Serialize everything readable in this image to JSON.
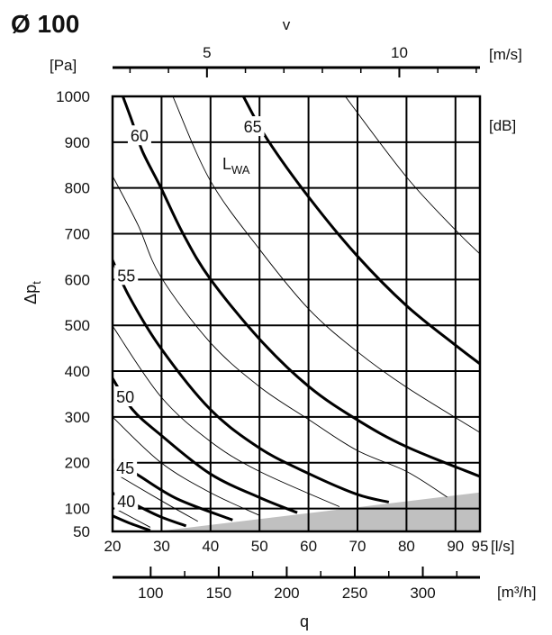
{
  "chart_data": {
    "type": "line",
    "title": "Ø 100",
    "x_axis": {
      "label": "q",
      "unit": "[l/s]",
      "range": [
        20,
        95
      ],
      "ticks": [
        20,
        30,
        40,
        50,
        60,
        70,
        80,
        90,
        95
      ]
    },
    "x2_axis": {
      "unit": "[m³/h]",
      "range": [
        72,
        342
      ],
      "ticks": [
        100,
        150,
        200,
        250,
        300
      ],
      "minor_ticks": [
        125,
        175,
        225,
        275,
        325
      ]
    },
    "top_axis": {
      "label": "v",
      "unit": "[m/s]",
      "range": [
        2.2,
        12.1
      ],
      "ticks": [
        5,
        10
      ],
      "minor_ticks": [
        3,
        4,
        6,
        7,
        8,
        9,
        11,
        12
      ]
    },
    "y_axis": {
      "label": "Δp",
      "label_sub": "t",
      "unit": "[Pa]",
      "range": [
        50,
        1000
      ],
      "ticks": [
        1000,
        900,
        800,
        700,
        600,
        500,
        400,
        300,
        200,
        100,
        50
      ]
    },
    "series_unit": "[dB]",
    "series_title": "L",
    "series_title_sub": "WA",
    "grid": true,
    "colors": {
      "line": "#000000",
      "shaded_region": "#c0c0c0"
    },
    "shaded_region": [
      [
        29,
        50
      ],
      [
        95,
        135
      ],
      [
        95,
        50
      ]
    ],
    "series": [
      {
        "name": "65",
        "weight": "thick",
        "points": [
          [
            46.7,
            1000
          ],
          [
            51.6,
            906
          ],
          [
            60.4,
            775
          ],
          [
            70,
            651
          ],
          [
            80,
            543
          ],
          [
            90.2,
            455
          ],
          [
            95,
            416
          ]
        ]
      },
      {
        "name": "60",
        "weight": "thick",
        "points": [
          [
            22.1,
            1000
          ],
          [
            24,
            945
          ],
          [
            26.1,
            880
          ],
          [
            29.8,
            802
          ],
          [
            34.4,
            700
          ],
          [
            39.9,
            602
          ],
          [
            50,
            470
          ],
          [
            60.1,
            366
          ],
          [
            69.9,
            294
          ],
          [
            80,
            235
          ],
          [
            95,
            170
          ]
        ]
      },
      {
        "name": "55",
        "weight": "thick",
        "points": [
          [
            19.8,
            647
          ],
          [
            23.4,
            563
          ],
          [
            29.8,
            451
          ],
          [
            39.9,
            317
          ],
          [
            50,
            232
          ],
          [
            60.1,
            176
          ],
          [
            69.9,
            131
          ],
          [
            76.4,
            114
          ]
        ]
      },
      {
        "name": "50",
        "weight": "thick",
        "points": [
          [
            19.8,
            388
          ],
          [
            24,
            317
          ],
          [
            29.8,
            261
          ],
          [
            39.9,
            176
          ],
          [
            50,
            124
          ],
          [
            57.7,
            91
          ]
        ]
      },
      {
        "name": "45",
        "weight": "thick",
        "points": [
          [
            19.8,
            208
          ],
          [
            25.2,
            173
          ],
          [
            33.2,
            121
          ],
          [
            44.5,
            75
          ]
        ]
      },
      {
        "name": "40",
        "weight": "thick",
        "points": [
          [
            19.8,
            135
          ],
          [
            25.5,
            104
          ],
          [
            29.8,
            82
          ],
          [
            35,
            62
          ]
        ]
      },
      {
        "weight": "thick",
        "points": [
          [
            19.8,
            85
          ],
          [
            23.5,
            68
          ],
          [
            27.7,
            52
          ]
        ]
      },
      {
        "weight": "thin",
        "points": [
          [
            32.3,
            1000
          ],
          [
            39.9,
            817
          ],
          [
            50,
            666
          ],
          [
            60.1,
            535
          ],
          [
            69.9,
            443
          ],
          [
            80,
            365
          ],
          [
            95,
            266
          ]
        ]
      },
      {
        "weight": "thin",
        "points": [
          [
            67.5,
            1000
          ],
          [
            80,
            824
          ],
          [
            90.2,
            706
          ],
          [
            95,
            656
          ]
        ]
      },
      {
        "weight": "thin",
        "points": [
          [
            19.8,
            830
          ],
          [
            25.2,
            719
          ],
          [
            29.8,
            607
          ],
          [
            39.9,
            463
          ],
          [
            50,
            366
          ],
          [
            60.1,
            294
          ],
          [
            69.9,
            227
          ],
          [
            80,
            181
          ],
          [
            88.3,
            125
          ]
        ]
      },
      {
        "weight": "thin",
        "points": [
          [
            19.8,
            502
          ],
          [
            29.8,
            345
          ],
          [
            39.9,
            247
          ],
          [
            50,
            181
          ],
          [
            66.3,
            104
          ]
        ]
      },
      {
        "weight": "thin",
        "points": [
          [
            19.8,
            302
          ],
          [
            29.8,
            201
          ],
          [
            39.9,
            135
          ],
          [
            50,
            85
          ]
        ]
      },
      {
        "weight": "thin",
        "points": [
          [
            19.8,
            181
          ],
          [
            29.8,
            118
          ],
          [
            37.4,
            72
          ]
        ]
      },
      {
        "weight": "thin",
        "points": [
          [
            19.8,
            104
          ],
          [
            27.7,
            59
          ]
        ]
      }
    ],
    "curve_labels": [
      {
        "text": "65",
        "q": 48.6,
        "p": 935
      },
      {
        "text": "60",
        "q": 25.5,
        "p": 915
      },
      {
        "text": "55",
        "q": 22.8,
        "p": 610
      },
      {
        "text": "50",
        "q": 22.6,
        "p": 345
      },
      {
        "text": "45",
        "q": 22.6,
        "p": 190
      },
      {
        "text": "40",
        "q": 22.8,
        "p": 117
      }
    ]
  }
}
